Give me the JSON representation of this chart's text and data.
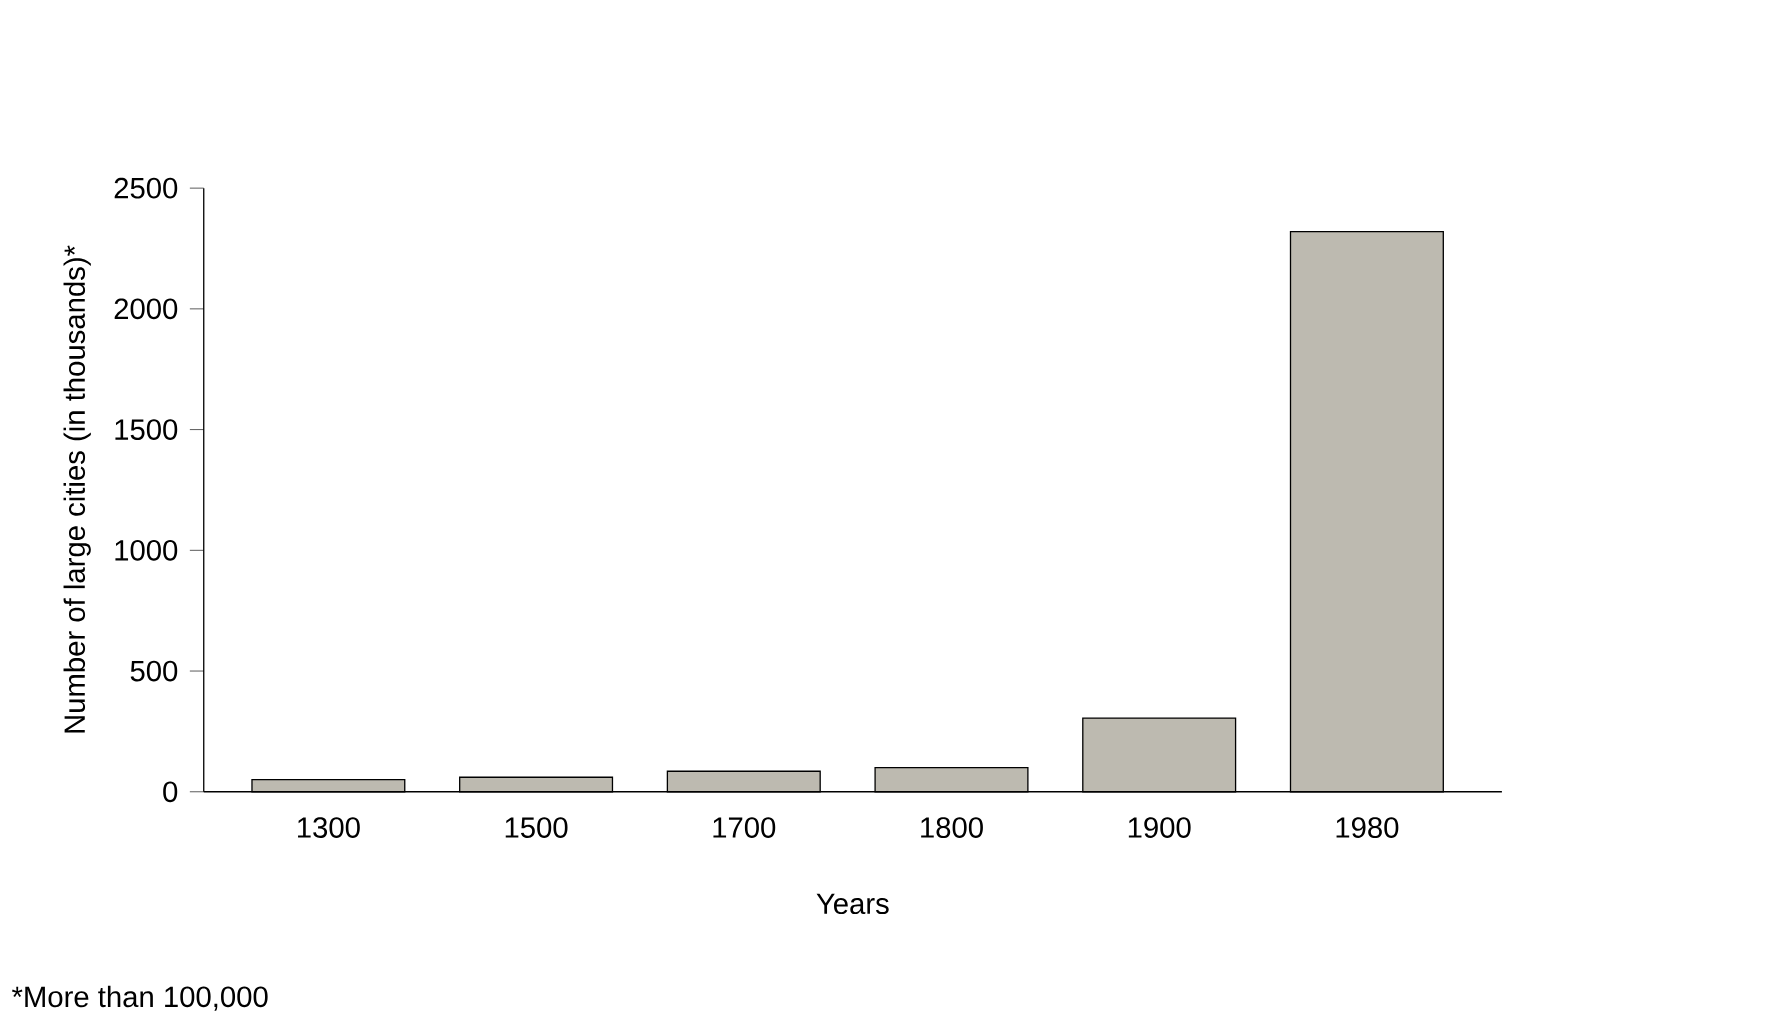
{
  "chart_data": {
    "type": "bar",
    "xlabel": "Years",
    "ylabel": "Number of large cities (in thousands)*",
    "categories": [
      "1300",
      "1500",
      "1700",
      "1800",
      "1900",
      "1980"
    ],
    "values": [
      50,
      60,
      85,
      100,
      305,
      2320
    ],
    "color": "#bdbab0",
    "ylim": [
      0,
      2500
    ],
    "yticks": [
      0,
      500,
      1000,
      1500,
      2000,
      2500
    ],
    "annotations": [
      "*More than 100,000"
    ]
  }
}
